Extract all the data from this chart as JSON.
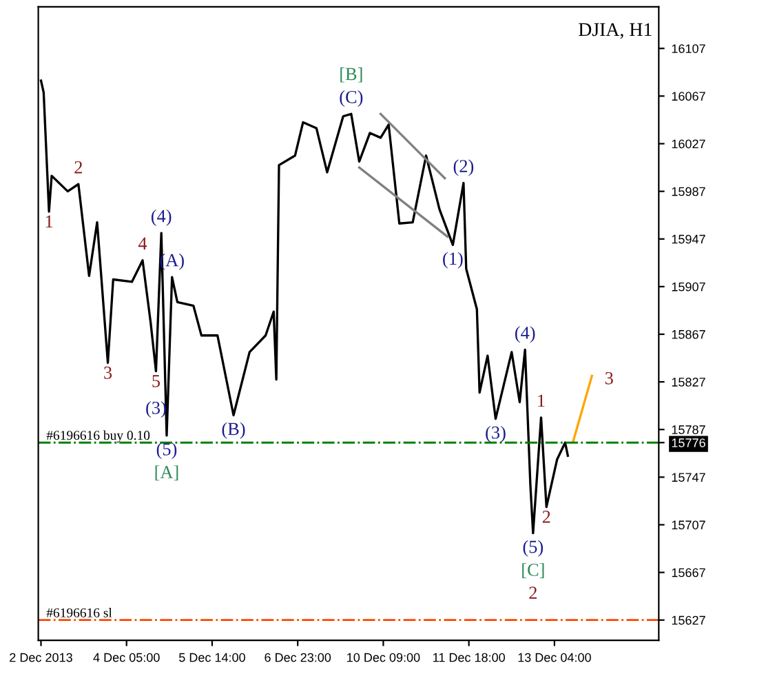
{
  "chart_data": {
    "type": "line",
    "title": "DJIA, H1",
    "categories": [
      "2 Dec 2013",
      null,
      null,
      null,
      null,
      null,
      null,
      null,
      null,
      null,
      null,
      null,
      null,
      null,
      null,
      null,
      null,
      null,
      null,
      null,
      null,
      null,
      null,
      null,
      null,
      null,
      null,
      null,
      null,
      null,
      null,
      null,
      "4 Dec 05:00",
      null,
      null,
      null,
      null,
      null,
      null,
      null,
      null,
      null,
      null,
      null,
      null,
      null,
      null,
      null,
      null,
      null,
      null,
      null,
      null,
      null,
      null,
      null,
      null,
      null,
      null,
      null,
      null,
      null,
      null,
      null,
      "5 Dec 14:00",
      null,
      null,
      null,
      null,
      null,
      null,
      null,
      null,
      null,
      null,
      null,
      null,
      null,
      null,
      null,
      null,
      null,
      null,
      null,
      null,
      null,
      null,
      null,
      null,
      null,
      null,
      null,
      null,
      null,
      null,
      null,
      "6 Dec 23:00",
      null,
      null,
      null,
      null,
      null,
      null,
      null,
      null,
      null,
      null,
      null,
      null,
      null,
      null,
      null,
      null,
      null,
      null,
      null,
      null,
      null,
      null,
      null,
      null,
      null,
      null,
      null,
      null,
      null,
      null,
      null,
      "10 Dec 09:00",
      null,
      null,
      null,
      null,
      null,
      null,
      null,
      null,
      null,
      null,
      null,
      null,
      null,
      null,
      null,
      null,
      null,
      null,
      null,
      null,
      null,
      null,
      null,
      null,
      null,
      null,
      null,
      null,
      null,
      null,
      null,
      "11 Dec 18:00",
      null,
      null,
      null,
      null,
      null,
      null,
      null,
      null,
      null,
      null,
      null,
      null,
      null,
      null,
      null,
      null,
      null,
      null,
      null,
      null,
      null,
      null,
      null,
      null,
      null,
      null,
      null,
      null,
      null,
      null,
      null,
      "13 Dec 04:00",
      null,
      null,
      null,
      null,
      null,
      null,
      null,
      null,
      null,
      null,
      null,
      null,
      null,
      null,
      null,
      null,
      null,
      null,
      null,
      null,
      null,
      null,
      null,
      null,
      null,
      null,
      null,
      null,
      null,
      null,
      null,
      null,
      null,
      null,
      null,
      null,
      null,
      null
    ],
    "ylim": [
      15610,
      16142
    ],
    "yticks": [
      15627,
      15667,
      15707,
      15747,
      {
        "value": 15776,
        "label": "15776"
      },
      15787,
      15827,
      15867,
      15907,
      15947,
      15987,
      16027,
      16067,
      16107
    ],
    "grid": false,
    "legend": false,
    "series": [
      {
        "color": "#000000",
        "values": [
          16080,
          16070,
          null,
          15970,
          16000,
          null,
          null,
          null,
          null,
          null,
          15987,
          null,
          null,
          null,
          15993,
          null,
          null,
          null,
          15916,
          null,
          null,
          15961,
          null,
          null,
          null,
          15843,
          null,
          15913,
          null,
          null,
          null,
          null,
          null,
          null,
          15911,
          null,
          null,
          null,
          15929,
          null,
          null,
          15877,
          null,
          15836,
          null,
          15952,
          null,
          15782,
          null,
          15915,
          null,
          15894,
          null,
          null,
          null,
          null,
          null,
          15891,
          null,
          null,
          15866,
          null,
          null,
          null,
          null,
          null,
          15866,
          null,
          null,
          null,
          null,
          null,
          15799,
          null,
          null,
          null,
          null,
          null,
          15852,
          null,
          null,
          null,
          null,
          null,
          15866,
          null,
          null,
          15886,
          15829,
          16009,
          null,
          null,
          null,
          null,
          null,
          16017,
          null,
          null,
          16045,
          null,
          null,
          null,
          null,
          16040,
          null,
          null,
          null,
          16003,
          null,
          null,
          null,
          null,
          null,
          16050,
          null,
          null,
          16052,
          null,
          null,
          16012,
          null,
          null,
          null,
          16036,
          null,
          null,
          null,
          16032,
          null,
          null,
          16043,
          null,
          null,
          null,
          15960,
          null,
          null,
          null,
          null,
          15961,
          null,
          null,
          null,
          null,
          16017,
          null,
          null,
          null,
          null,
          15972,
          null,
          null,
          null,
          null,
          15942,
          null,
          null,
          null,
          15994,
          15922,
          null,
          null,
          null,
          15888,
          15818,
          null,
          null,
          15849,
          null,
          null,
          15796,
          null,
          null,
          null,
          null,
          null,
          15852,
          null,
          null,
          15810,
          null,
          15854,
          null,
          15740,
          15700,
          null,
          null,
          15797,
          null,
          15722,
          null,
          null,
          null,
          15762,
          null,
          null,
          15776,
          15765,
          null,
          null,
          null,
          null,
          null,
          null,
          null,
          null,
          null,
          null,
          null,
          null,
          null,
          null,
          null,
          null,
          null,
          null,
          null,
          null,
          null,
          null,
          null,
          null,
          null,
          null,
          null,
          null,
          null,
          null,
          null,
          null,
          null
        ]
      },
      {
        "color": "#808080",
        "values": [
          null,
          null,
          null,
          null,
          null,
          null,
          null,
          null,
          null,
          null,
          null,
          null,
          null,
          null,
          null,
          null,
          null,
          null,
          null,
          null,
          null,
          null,
          null,
          null,
          null,
          null,
          null,
          null,
          null,
          null,
          null,
          null,
          null,
          null,
          null,
          null,
          null,
          null,
          null,
          null,
          null,
          null,
          null,
          null,
          null,
          null,
          null,
          null,
          null,
          null,
          null,
          null,
          null,
          null,
          null,
          null,
          null,
          null,
          null,
          null,
          null,
          null,
          null,
          null,
          null,
          null,
          null,
          null,
          null,
          null,
          null,
          null,
          null,
          null,
          null,
          null,
          null,
          null,
          null,
          null,
          null,
          null,
          null,
          null,
          null,
          null,
          null,
          null,
          null,
          null,
          null,
          null,
          null,
          null,
          null,
          null,
          null,
          null,
          null,
          null,
          null,
          null,
          null,
          null,
          null,
          null,
          null,
          null,
          null,
          null,
          null,
          null,
          null,
          null,
          null,
          null,
          null,
          null,
          null,
          null,
          null,
          null,
          null,
          null,
          null,
          null,
          null,
          16052,
          null,
          null,
          null,
          null,
          null,
          null,
          null,
          null,
          null,
          null,
          null,
          null,
          null,
          null,
          null,
          null,
          null,
          null,
          null,
          null,
          null,
          null,
          null,
          15998,
          null,
          null,
          null,
          null,
          null,
          null,
          null,
          null,
          null,
          null,
          null,
          null,
          null,
          null,
          null,
          null,
          null,
          null,
          null,
          null,
          null,
          null,
          null,
          null,
          null,
          null,
          null,
          null,
          null,
          null,
          null,
          null,
          null,
          null,
          null,
          null,
          null,
          null,
          null,
          null,
          null,
          null,
          null,
          null,
          null,
          null,
          null,
          null,
          null,
          null,
          null,
          null,
          null,
          null,
          null,
          null,
          null,
          null,
          null,
          null,
          null,
          null,
          null,
          null,
          null,
          null,
          null,
          null,
          null,
          null,
          null,
          null,
          null,
          null,
          null,
          null,
          null,
          null,
          null
        ]
      },
      {
        "color": "#808080",
        "values": [
          null,
          null,
          null,
          null,
          null,
          null,
          null,
          null,
          null,
          null,
          null,
          null,
          null,
          null,
          null,
          null,
          null,
          null,
          null,
          null,
          null,
          null,
          null,
          null,
          null,
          null,
          null,
          null,
          null,
          null,
          null,
          null,
          null,
          null,
          null,
          null,
          null,
          null,
          null,
          null,
          null,
          null,
          null,
          null,
          null,
          null,
          null,
          null,
          null,
          null,
          null,
          null,
          null,
          null,
          null,
          null,
          null,
          null,
          null,
          null,
          null,
          null,
          null,
          null,
          null,
          null,
          null,
          null,
          null,
          null,
          null,
          null,
          null,
          null,
          null,
          null,
          null,
          null,
          null,
          null,
          null,
          null,
          null,
          null,
          null,
          null,
          null,
          null,
          null,
          null,
          null,
          null,
          null,
          null,
          null,
          null,
          null,
          null,
          null,
          null,
          null,
          null,
          null,
          null,
          null,
          null,
          null,
          null,
          null,
          null,
          null,
          null,
          null,
          null,
          null,
          null,
          null,
          null,
          null,
          16007,
          null,
          null,
          null,
          null,
          null,
          null,
          null,
          null,
          null,
          null,
          null,
          null,
          null,
          null,
          null,
          null,
          null,
          null,
          null,
          null,
          null,
          null,
          null,
          null,
          null,
          null,
          null,
          null,
          null,
          null,
          null,
          null,
          15949,
          null,
          null,
          null,
          null,
          null,
          null,
          null,
          null,
          null,
          null,
          null,
          null,
          null,
          null,
          null,
          null,
          null,
          null,
          null,
          null,
          null,
          null,
          null,
          null,
          null,
          null,
          null,
          null,
          null,
          null,
          null,
          null,
          null,
          null,
          null,
          null,
          null,
          null,
          null,
          null,
          null,
          null,
          null,
          null,
          null,
          null,
          null,
          null,
          null,
          null,
          null,
          null,
          null,
          null,
          null,
          null,
          null,
          null,
          null,
          null,
          null,
          null,
          null,
          null,
          null,
          null,
          null,
          null,
          null,
          null,
          null,
          null,
          null,
          null,
          null,
          null,
          null,
          null
        ]
      },
      {
        "color": "#ffa500",
        "values": [
          null,
          null,
          null,
          null,
          null,
          null,
          null,
          null,
          null,
          null,
          null,
          null,
          null,
          null,
          null,
          null,
          null,
          null,
          null,
          null,
          null,
          null,
          null,
          null,
          null,
          null,
          null,
          null,
          null,
          null,
          null,
          null,
          null,
          null,
          null,
          null,
          null,
          null,
          null,
          null,
          null,
          null,
          null,
          null,
          null,
          null,
          null,
          null,
          null,
          null,
          null,
          null,
          null,
          null,
          null,
          null,
          null,
          null,
          null,
          null,
          null,
          null,
          null,
          null,
          null,
          null,
          null,
          null,
          null,
          null,
          null,
          null,
          null,
          null,
          null,
          null,
          null,
          null,
          null,
          null,
          null,
          null,
          null,
          null,
          null,
          null,
          null,
          null,
          null,
          null,
          null,
          null,
          null,
          null,
          null,
          null,
          null,
          null,
          null,
          null,
          null,
          null,
          null,
          null,
          null,
          null,
          null,
          null,
          null,
          null,
          null,
          null,
          null,
          null,
          null,
          null,
          null,
          null,
          null,
          null,
          null,
          null,
          null,
          null,
          null,
          null,
          null,
          null,
          null,
          null,
          null,
          null,
          null,
          null,
          null,
          null,
          null,
          null,
          null,
          null,
          null,
          null,
          null,
          null,
          null,
          null,
          null,
          null,
          null,
          null,
          null,
          null,
          null,
          null,
          null,
          null,
          null,
          null,
          null,
          null,
          null,
          null,
          null,
          null,
          null,
          null,
          null,
          null,
          null,
          null,
          null,
          null,
          null,
          null,
          null,
          null,
          null,
          null,
          null,
          null,
          null,
          null,
          null,
          null,
          null,
          null,
          null,
          null,
          null,
          null,
          null,
          null,
          null,
          null,
          null,
          null,
          null,
          null,
          null,
          15777,
          null,
          null,
          null,
          null,
          null,
          null,
          15832,
          null,
          null,
          null,
          null,
          null,
          null,
          null,
          null,
          null,
          null,
          null,
          null,
          null,
          null,
          null,
          null,
          null,
          null,
          null,
          null,
          null,
          null,
          null,
          null
        ]
      }
    ],
    "ref_lines": [
      {
        "axis": "y",
        "value": 15776,
        "label": "#6196616 buy 0.10",
        "color": "#008000",
        "line_style": "dashdot"
      },
      {
        "axis": "y",
        "value": 15627,
        "label": "#6196616 sl",
        "color": "#ff4500",
        "line_style": "dashdot"
      }
    ],
    "annotations": [
      {
        "text": "1",
        "y": 15970
      },
      {
        "text": "2",
        "y": 15993
      },
      {
        "text": "3",
        "y": 15843
      },
      {
        "text": "4",
        "y": 15929
      },
      {
        "text": "5",
        "y": 15836
      },
      {
        "text": "(3)",
        "y": 15836
      },
      {
        "text": "(4)",
        "y": 15952
      },
      {
        "text": "(A)",
        "y": 15915
      },
      {
        "text": "(5)",
        "y": 15782
      },
      {
        "text": "[A]",
        "y": 15782
      },
      {
        "text": "(B)",
        "y": 15799
      },
      {
        "text": "(C)",
        "y": 16052
      },
      {
        "text": "[B]",
        "y": 16052
      },
      {
        "text": "(2)",
        "y": 15994
      },
      {
        "text": "(1)",
        "y": 15942
      },
      {
        "text": "(4)",
        "y": 15854
      },
      {
        "text": "(3)",
        "y": 15796
      },
      {
        "text": "1",
        "y": 15797
      },
      {
        "text": "2",
        "y": 15722
      },
      {
        "text": "(5)",
        "y": 15700
      },
      {
        "text": "[C]",
        "y": 15700
      },
      {
        "text": "2",
        "y": 15700
      },
      "3"
    ]
  }
}
